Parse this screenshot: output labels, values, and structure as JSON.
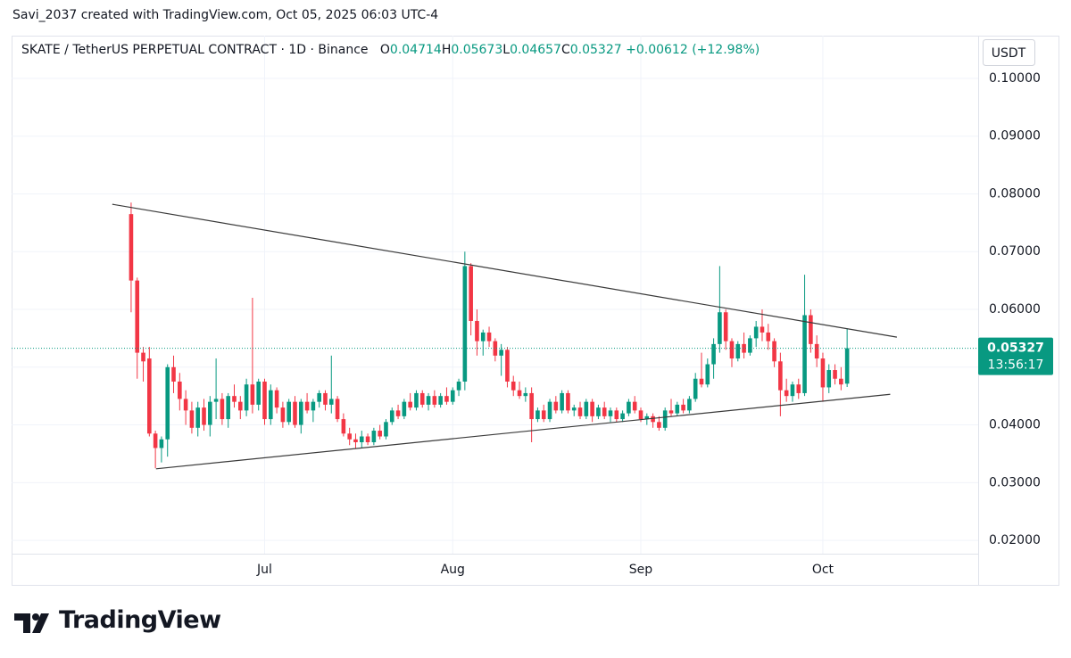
{
  "header": {
    "attribution": "Savi_2037 created with TradingView.com, Oct 05, 2025 06:03 UTC-4",
    "logo": "TradingView"
  },
  "chart_data": {
    "type": "candlestick",
    "title": "SKATE / TetherUS PERPETUAL CONTRACT · 1D · Binance",
    "ohlc_labels": [
      "O",
      "H",
      "L",
      "C"
    ],
    "change": "+0.00612",
    "change_pct": "(+12.98%)",
    "currency": "USDT",
    "countdown": "13:56:17",
    "categories": [
      null,
      null,
      null,
      null,
      null,
      null,
      null,
      null,
      null,
      null,
      null,
      null,
      null,
      null,
      null,
      null,
      null,
      null,
      null,
      null,
      null,
      null,
      "Jul",
      null,
      null,
      null,
      null,
      null,
      null,
      null,
      null,
      null,
      null,
      null,
      null,
      null,
      null,
      null,
      null,
      null,
      null,
      null,
      null,
      null,
      null,
      null,
      null,
      null,
      null,
      null,
      null,
      null,
      null,
      "Aug",
      null,
      null,
      null,
      null,
      null,
      null,
      null,
      null,
      null,
      null,
      null,
      null,
      null,
      null,
      null,
      null,
      null,
      null,
      null,
      null,
      null,
      null,
      null,
      null,
      null,
      null,
      null,
      null,
      null,
      null,
      "Sep",
      null,
      null,
      null,
      null,
      null,
      null,
      null,
      null,
      null,
      null,
      null,
      null,
      null,
      null,
      null,
      null,
      null,
      null,
      null,
      null,
      null,
      null,
      null,
      null,
      null,
      null,
      null,
      null,
      null,
      "Oct",
      null,
      null,
      null,
      null
    ],
    "open": [
      0.0765,
      0.065,
      0.0525,
      0.0515,
      0.0385,
      0.036,
      0.0375,
      0.05,
      0.0475,
      0.0445,
      0.0425,
      0.0395,
      0.043,
      0.04,
      0.044,
      0.0445,
      0.041,
      0.045,
      0.044,
      0.0425,
      0.047,
      0.0435,
      0.0475,
      0.041,
      0.046,
      0.043,
      0.0405,
      0.044,
      0.04,
      0.044,
      0.0425,
      0.044,
      0.0455,
      0.0435,
      0.0445,
      0.041,
      0.0385,
      0.0375,
      0.037,
      0.038,
      0.037,
      0.039,
      0.038,
      0.0405,
      0.0425,
      0.0415,
      0.044,
      0.043,
      0.0455,
      0.0435,
      0.045,
      0.0435,
      0.045,
      0.044,
      0.046,
      0.0475,
      0.0675,
      0.058,
      0.0545,
      0.056,
      0.0545,
      0.052,
      0.053,
      0.0475,
      0.046,
      0.045,
      0.0455,
      0.041,
      0.0425,
      0.041,
      0.044,
      0.0425,
      0.0455,
      0.0425,
      0.043,
      0.0415,
      0.044,
      0.0415,
      0.043,
      0.0415,
      0.0425,
      0.041,
      0.042,
      0.044,
      0.0425,
      0.041,
      0.0415,
      0.0405,
      0.0395,
      0.0425,
      0.042,
      0.0435,
      0.0425,
      0.0445,
      0.048,
      0.047,
      0.0505,
      0.054,
      0.0595,
      0.0545,
      0.0515,
      0.054,
      0.0525,
      0.055,
      0.057,
      0.056,
      0.0545,
      0.051,
      0.046,
      0.045,
      0.047,
      0.0455,
      0.059,
      0.054,
      0.0515,
      0.0465,
      0.0495,
      0.048,
      0.04714
    ],
    "high": [
      0.0785,
      0.0655,
      0.0535,
      0.0535,
      0.039,
      0.038,
      0.0505,
      0.052,
      0.049,
      0.046,
      0.044,
      0.044,
      0.0445,
      0.045,
      0.0515,
      0.0455,
      0.0455,
      0.047,
      0.045,
      0.048,
      0.062,
      0.048,
      0.048,
      0.047,
      0.0465,
      0.044,
      0.0445,
      0.045,
      0.0445,
      0.0455,
      0.0445,
      0.046,
      0.046,
      0.052,
      0.045,
      0.042,
      0.0395,
      0.0385,
      0.039,
      0.0385,
      0.0395,
      0.04,
      0.041,
      0.043,
      0.0435,
      0.0445,
      0.0455,
      0.046,
      0.046,
      0.0455,
      0.046,
      0.0455,
      0.0465,
      0.0465,
      0.048,
      0.07,
      0.068,
      0.06,
      0.0565,
      0.057,
      0.055,
      0.054,
      0.0535,
      0.0485,
      0.0475,
      0.0465,
      0.0465,
      0.043,
      0.0435,
      0.0445,
      0.045,
      0.046,
      0.046,
      0.0435,
      0.044,
      0.0445,
      0.0445,
      0.0435,
      0.044,
      0.043,
      0.043,
      0.0425,
      0.0445,
      0.045,
      0.043,
      0.042,
      0.042,
      0.0415,
      0.043,
      0.0445,
      0.044,
      0.0445,
      0.045,
      0.049,
      0.0525,
      0.0515,
      0.055,
      0.0675,
      0.06,
      0.055,
      0.0545,
      0.056,
      0.0555,
      0.058,
      0.06,
      0.0575,
      0.055,
      0.0525,
      0.048,
      0.0475,
      0.048,
      0.066,
      0.06,
      0.0555,
      0.0525,
      0.0505,
      0.0505,
      0.05,
      0.05673
    ],
    "low": [
      0.0595,
      0.048,
      0.0475,
      0.038,
      0.0325,
      0.0335,
      0.0345,
      0.0455,
      0.0425,
      0.04,
      0.0385,
      0.038,
      0.039,
      0.038,
      0.041,
      0.04,
      0.0395,
      0.043,
      0.041,
      0.0415,
      0.042,
      0.0425,
      0.04,
      0.04,
      0.042,
      0.0395,
      0.04,
      0.0395,
      0.0385,
      0.042,
      0.0405,
      0.043,
      0.0425,
      0.042,
      0.0405,
      0.038,
      0.0365,
      0.036,
      0.036,
      0.0365,
      0.0365,
      0.0375,
      0.0375,
      0.04,
      0.041,
      0.041,
      0.0425,
      0.0425,
      0.043,
      0.0425,
      0.043,
      0.043,
      0.0435,
      0.0435,
      0.045,
      0.046,
      0.0555,
      0.052,
      0.052,
      0.0535,
      0.051,
      0.0485,
      0.0465,
      0.045,
      0.0445,
      0.044,
      0.037,
      0.0405,
      0.0405,
      0.0405,
      0.042,
      0.042,
      0.042,
      0.0415,
      0.041,
      0.041,
      0.0405,
      0.041,
      0.041,
      0.0405,
      0.0405,
      0.0405,
      0.0415,
      0.042,
      0.0405,
      0.04,
      0.0395,
      0.039,
      0.039,
      0.0415,
      0.0415,
      0.042,
      0.042,
      0.044,
      0.0465,
      0.0465,
      0.048,
      0.0525,
      0.053,
      0.05,
      0.051,
      0.0515,
      0.052,
      0.0535,
      0.0545,
      0.053,
      0.05,
      0.0415,
      0.044,
      0.044,
      0.0445,
      0.045,
      0.0525,
      0.05,
      0.044,
      0.0455,
      0.047,
      0.046,
      0.04657
    ],
    "close": [
      0.065,
      0.0525,
      0.051,
      0.0385,
      0.036,
      0.0375,
      0.05,
      0.0475,
      0.0445,
      0.0425,
      0.0395,
      0.043,
      0.04,
      0.044,
      0.0445,
      0.041,
      0.045,
      0.044,
      0.0425,
      0.047,
      0.0435,
      0.0475,
      0.041,
      0.046,
      0.043,
      0.0405,
      0.044,
      0.04,
      0.044,
      0.0425,
      0.044,
      0.0455,
      0.0435,
      0.0445,
      0.041,
      0.0385,
      0.0375,
      0.037,
      0.038,
      0.037,
      0.039,
      0.038,
      0.0405,
      0.0425,
      0.0415,
      0.044,
      0.043,
      0.0455,
      0.0435,
      0.045,
      0.0435,
      0.045,
      0.044,
      0.046,
      0.0475,
      0.0675,
      0.058,
      0.0545,
      0.056,
      0.0545,
      0.052,
      0.053,
      0.0475,
      0.046,
      0.045,
      0.0455,
      0.041,
      0.0425,
      0.041,
      0.044,
      0.0425,
      0.0455,
      0.0425,
      0.043,
      0.0415,
      0.044,
      0.0415,
      0.043,
      0.0415,
      0.0425,
      0.041,
      0.042,
      0.044,
      0.0425,
      0.041,
      0.0415,
      0.0405,
      0.0395,
      0.0425,
      0.042,
      0.0435,
      0.0425,
      0.0445,
      0.048,
      0.047,
      0.0505,
      0.054,
      0.0595,
      0.0545,
      0.0515,
      0.054,
      0.0525,
      0.055,
      0.057,
      0.056,
      0.0545,
      0.051,
      0.046,
      0.045,
      0.047,
      0.0455,
      0.059,
      0.054,
      0.0515,
      0.0465,
      0.0495,
      0.048,
      0.047,
      0.05327
    ],
    "up_color": "#089981",
    "down_color": "#f23645",
    "ylim": [
      0.0177,
      0.1074
    ],
    "yticks": [
      {
        "value": 0.02,
        "label": "0.02000"
      },
      {
        "value": 0.03,
        "label": "0.03000"
      },
      {
        "value": 0.04,
        "label": "0.04000"
      },
      {
        "value": 0.05,
        "label": "0.05000"
      },
      {
        "value": 0.06,
        "label": "0.06000"
      },
      {
        "value": 0.07,
        "label": "0.07000"
      },
      {
        "value": 0.08,
        "label": "0.08000"
      },
      {
        "value": 0.09,
        "label": "0.09000"
      },
      {
        "value": 0.1,
        "label": "0.10000"
      }
    ],
    "xlim": [
      -19.7,
      139.6
    ],
    "trendlines": [
      {
        "x": [
          -3.1,
          126.2
        ],
        "y": [
          0.0782,
          0.0552
        ],
        "color": "#3a3a3a"
      },
      {
        "x": [
          4.1,
          125.1
        ],
        "y": [
          0.0324,
          0.0453
        ],
        "color": "#3a3a3a"
      }
    ],
    "grid": true
  }
}
